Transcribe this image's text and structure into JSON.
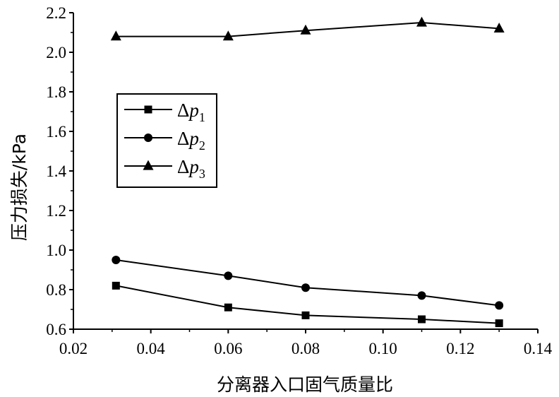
{
  "chart_data": {
    "type": "line",
    "title": "",
    "xlabel": "分离器入口固气质量比",
    "ylabel": "压力损失/kPa",
    "xlim": [
      0.02,
      0.14
    ],
    "ylim": [
      0.6,
      2.2
    ],
    "x_ticks": [
      "0.02",
      "0.04",
      "0.06",
      "0.08",
      "0.10",
      "0.12",
      "0.14"
    ],
    "y_ticks": [
      "0.6",
      "0.8",
      "1.0",
      "1.2",
      "1.4",
      "1.6",
      "1.8",
      "2.0",
      "2.2"
    ],
    "grid": false,
    "legend_position": "upper-left",
    "x": [
      0.031,
      0.06,
      0.08,
      0.11,
      0.13
    ],
    "series": [
      {
        "name": "Δp1",
        "name_main": "Δp",
        "name_sub": "1",
        "marker": "square",
        "values": [
          0.82,
          0.71,
          0.67,
          0.65,
          0.63
        ]
      },
      {
        "name": "Δp2",
        "name_main": "Δp",
        "name_sub": "2",
        "marker": "circle",
        "values": [
          0.95,
          0.87,
          0.81,
          0.77,
          0.72
        ]
      },
      {
        "name": "Δp3",
        "name_main": "Δp",
        "name_sub": "3",
        "marker": "triangle",
        "values": [
          2.08,
          2.08,
          2.11,
          2.15,
          2.12
        ]
      }
    ],
    "colors": {
      "line": "#000000",
      "background": "#ffffff"
    }
  }
}
